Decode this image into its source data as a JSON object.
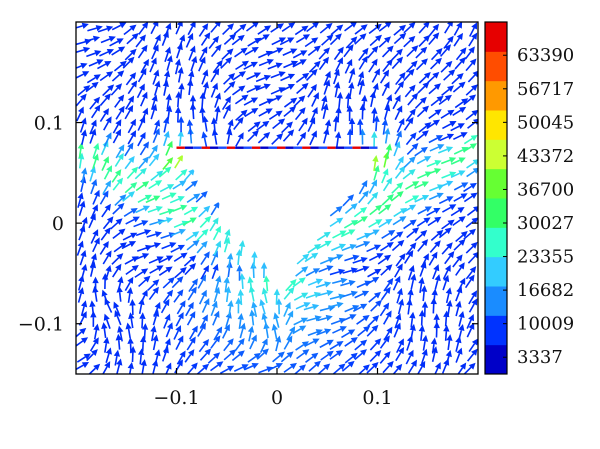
{
  "chart_data": {
    "type": "vector-field",
    "title": "",
    "xlabel": "",
    "ylabel": "",
    "xlim": [
      -0.2,
      0.2
    ],
    "ylim": [
      -0.15,
      0.2
    ],
    "x_ticks": [
      -0.1,
      0,
      0.1
    ],
    "x_tick_labels": [
      "−0.1",
      "0",
      "0.1"
    ],
    "y_ticks": [
      -0.1,
      0,
      0.1
    ],
    "y_tick_labels": [
      "−0.1",
      "0",
      "0.1"
    ],
    "grid": false,
    "obstacle": {
      "shape": "inverted-triangle",
      "vertices": [
        [
          -0.1,
          0.075
        ],
        [
          0.1,
          0.075
        ],
        [
          0.0,
          -0.055
        ]
      ]
    },
    "colorbar": {
      "position": "right",
      "min": 0,
      "max": 70000,
      "ticks": [
        3337,
        10009,
        16682,
        23355,
        30027,
        36700,
        43372,
        50045,
        56717,
        63390
      ],
      "tick_labels": [
        "3337",
        "10009",
        "16682",
        "23355",
        "30027",
        "36700",
        "43372",
        "50045",
        "56717",
        "63390"
      ],
      "colors": [
        "#0000c8",
        "#0033ff",
        "#1a8cff",
        "#33ccff",
        "#33ffcc",
        "#33ff66",
        "#66ff33",
        "#ccff33",
        "#ffe600",
        "#ff9900",
        "#ff4d00",
        "#e60000"
      ]
    }
  }
}
